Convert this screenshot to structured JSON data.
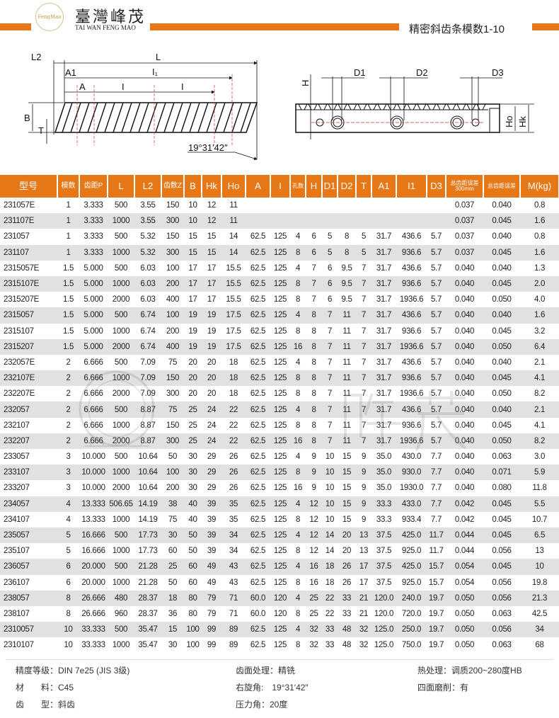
{
  "header": {
    "brand_cn": "臺灣峰茂",
    "brand_en": "TAI WAN FENG MAO",
    "logo_text": "FengMao",
    "page_title": "精密斜齿条模数1-10",
    "accent": "#e67817"
  },
  "drawing_left": {
    "labels": {
      "L2": "L2",
      "L": "L",
      "A1": "A1",
      "I1": "I₁",
      "A": "A",
      "I_a": "I",
      "I_b": "I",
      "B": "B",
      "T": "T",
      "angle": "19°31′42″"
    }
  },
  "drawing_right": {
    "labels": {
      "H": "H",
      "D1": "D1",
      "D2": "D2",
      "D3": "D3",
      "Ho": "Ho",
      "Hk": "Hk"
    }
  },
  "table": {
    "columns": [
      "型号",
      "模数",
      "齿距P",
      "L",
      "L2",
      "齿数Z",
      "B",
      "Hk",
      "Ho",
      "A",
      "I",
      "孔数",
      "H",
      "D1",
      "D2",
      "T",
      "A1",
      "I1",
      "D3",
      "总齿距误差300mm",
      "总齿距误差",
      "M(kg)"
    ],
    "rows": [
      [
        "231057E",
        "1",
        "3.333",
        "500",
        "3.55",
        "150",
        "10",
        "12",
        "11",
        "",
        "",
        "",
        "",
        "",
        "",
        "",
        "",
        "",
        "",
        "0.037",
        "0.040",
        "0.8"
      ],
      [
        "231107E",
        "1",
        "3.333",
        "1000",
        "3.55",
        "300",
        "10",
        "12",
        "11",
        "",
        "",
        "",
        "",
        "",
        "",
        "",
        "",
        "",
        "",
        "0.037",
        "0.045",
        "1.6"
      ],
      [
        "231057",
        "1",
        "3.333",
        "500",
        "5.32",
        "150",
        "15",
        "15",
        "14",
        "62.5",
        "125",
        "4",
        "6",
        "5",
        "8",
        "5",
        "31.7",
        "436.6",
        "5.7",
        "0.037",
        "0.040",
        "0.8"
      ],
      [
        "231107",
        "1",
        "3.333",
        "1000",
        "5.32",
        "300",
        "15",
        "15",
        "14",
        "62.5",
        "125",
        "8",
        "6",
        "5",
        "8",
        "5",
        "31.7",
        "936.6",
        "5.7",
        "0.037",
        "0.045",
        "1.6"
      ],
      [
        "2315057E",
        "1.5",
        "5.000",
        "500",
        "6.03",
        "100",
        "17",
        "17",
        "15.5",
        "62.5",
        "125",
        "4",
        "7",
        "6",
        "9.5",
        "7",
        "31.7",
        "436.6",
        "5.7",
        "0.040",
        "0.040",
        "1.3"
      ],
      [
        "2315107E",
        "1.5",
        "5.000",
        "1000",
        "6.03",
        "200",
        "17",
        "17",
        "15.5",
        "62.5",
        "125",
        "8",
        "7",
        "6",
        "9.5",
        "7",
        "31.7",
        "936.6",
        "5.7",
        "0.040",
        "0.045",
        "2.0"
      ],
      [
        "2315207E",
        "1.5",
        "5.000",
        "2000",
        "6.03",
        "400",
        "17",
        "17",
        "15.5",
        "62.5",
        "125",
        "8",
        "7",
        "6",
        "9.5",
        "7",
        "31.7",
        "1936.6",
        "5.7",
        "0.040",
        "0.050",
        "4.0"
      ],
      [
        "2315057",
        "1.5",
        "5.000",
        "500",
        "6.74",
        "100",
        "19",
        "19",
        "17.5",
        "62.5",
        "125",
        "4",
        "8",
        "7",
        "11",
        "7",
        "31.7",
        "436.6",
        "5.7",
        "0.040",
        "0.040",
        "1.6"
      ],
      [
        "2315107",
        "1.5",
        "5.000",
        "1000",
        "6.74",
        "200",
        "19",
        "19",
        "17.5",
        "62.5",
        "125",
        "8",
        "8",
        "7",
        "11",
        "7",
        "31.7",
        "936.6",
        "5.7",
        "0.040",
        "0.045",
        "3.2"
      ],
      [
        "2315207",
        "1.5",
        "5.000",
        "2000",
        "6.74",
        "400",
        "19",
        "19",
        "17.5",
        "62.5",
        "125",
        "16",
        "8",
        "7",
        "11",
        "7",
        "31.7",
        "1936.6",
        "5.7",
        "0.040",
        "0.050",
        "6.4"
      ],
      [
        "232057E",
        "2",
        "6.666",
        "500",
        "7.09",
        "75",
        "20",
        "20",
        "18",
        "62.5",
        "125",
        "4",
        "8",
        "7",
        "11",
        "7",
        "31.7",
        "436.6",
        "5.7",
        "0.040",
        "0.040",
        "2.1"
      ],
      [
        "232107E",
        "2",
        "6.666",
        "1000",
        "7.09",
        "150",
        "20",
        "20",
        "18",
        "62.5",
        "125",
        "8",
        "8",
        "7",
        "11",
        "7",
        "31.7",
        "936.6",
        "5.7",
        "0.040",
        "0.045",
        "4.1"
      ],
      [
        "232207E",
        "2",
        "6.666",
        "2000",
        "7.09",
        "300",
        "20",
        "20",
        "18",
        "62.5",
        "125",
        "8",
        "8",
        "7",
        "11",
        "7",
        "31.7",
        "1936.6",
        "5.7",
        "0.040",
        "0.050",
        "8.2"
      ],
      [
        "232057",
        "2",
        "6.666",
        "500",
        "8.87",
        "75",
        "25",
        "24",
        "22",
        "62.5",
        "125",
        "4",
        "8",
        "7",
        "11",
        "7",
        "31.7",
        "436.6",
        "5.7",
        "0.040",
        "0.040",
        "2.1"
      ],
      [
        "232107",
        "2",
        "6.666",
        "1000",
        "8.87",
        "150",
        "25",
        "24",
        "22",
        "62.5",
        "125",
        "8",
        "8",
        "7",
        "11",
        "7",
        "31.7",
        "936.6",
        "5.7",
        "0.040",
        "0.045",
        "4.1"
      ],
      [
        "232207",
        "2",
        "6.666",
        "2000",
        "8.87",
        "300",
        "25",
        "24",
        "22",
        "62.5",
        "125",
        "16",
        "8",
        "7",
        "11",
        "7",
        "31.7",
        "1936.6",
        "5.7",
        "0.040",
        "0.050",
        "8.2"
      ],
      [
        "233057",
        "3",
        "10.000",
        "500",
        "10.64",
        "50",
        "30",
        "29",
        "26",
        "62.5",
        "125",
        "4",
        "9",
        "10",
        "15",
        "9",
        "35.0",
        "430.0",
        "7.7",
        "0.040",
        "0.063",
        "3.0"
      ],
      [
        "233107",
        "3",
        "10.000",
        "1000",
        "10.64",
        "100",
        "30",
        "29",
        "26",
        "62.5",
        "125",
        "8",
        "9",
        "10",
        "15",
        "9",
        "35.0",
        "930.0",
        "7.7",
        "0.040",
        "0.071",
        "5.9"
      ],
      [
        "233207",
        "3",
        "10.000",
        "2000",
        "10.64",
        "200",
        "30",
        "29",
        "26",
        "62.5",
        "125",
        "16",
        "9",
        "10",
        "15",
        "9",
        "35.0",
        "1930.0",
        "7.7",
        "0.040",
        "0.080",
        "11.8"
      ],
      [
        "234057",
        "4",
        "13.333",
        "506.65",
        "14.19",
        "38",
        "40",
        "39",
        "35",
        "62.5",
        "125",
        "4",
        "12",
        "10",
        "15",
        "9",
        "33.3",
        "433.0",
        "7.7",
        "0.042",
        "0.045",
        "5.5"
      ],
      [
        "234107",
        "4",
        "13.333",
        "1000",
        "14.19",
        "75",
        "40",
        "39",
        "35",
        "62.5",
        "125",
        "8",
        "12",
        "10",
        "15",
        "9",
        "33.3",
        "933.4",
        "7.7",
        "0.042",
        "0.045",
        "10.7"
      ],
      [
        "235057",
        "5",
        "16.666",
        "500",
        "17.73",
        "30",
        "50",
        "39",
        "34",
        "62.5",
        "125",
        "4",
        "12",
        "14",
        "20",
        "13",
        "37.5",
        "425.0",
        "11.7",
        "0.044",
        "0.045",
        "6.5"
      ],
      [
        "235107",
        "5",
        "16.666",
        "1000",
        "17.73",
        "60",
        "50",
        "39",
        "34",
        "62.5",
        "125",
        "8",
        "12",
        "14",
        "20",
        "13",
        "37.5",
        "925.0",
        "11.7",
        "0.044",
        "0.056",
        "13"
      ],
      [
        "236057",
        "6",
        "20.000",
        "500",
        "21.28",
        "25",
        "60",
        "49",
        "43",
        "62.5",
        "125",
        "4",
        "16",
        "18",
        "26",
        "17",
        "37.5",
        "425.0",
        "15.7",
        "0.054",
        "0.045",
        "10"
      ],
      [
        "236107",
        "6",
        "20.000",
        "1000",
        "21.28",
        "50",
        "60",
        "49",
        "43",
        "62.5",
        "125",
        "8",
        "16",
        "18",
        "26",
        "17",
        "37.5",
        "925.0",
        "15.7",
        "0.054",
        "0.056",
        "19.8"
      ],
      [
        "238057",
        "8",
        "26.666",
        "480",
        "28.37",
        "18",
        "80",
        "79",
        "71",
        "60.0",
        "120",
        "4",
        "25",
        "22",
        "33",
        "21",
        "120.0",
        "240.0",
        "19.7",
        "0.050",
        "0.056",
        "21.3"
      ],
      [
        "238107",
        "8",
        "26.666",
        "960",
        "28.37",
        "36",
        "80",
        "79",
        "71",
        "60.0",
        "120",
        "8",
        "25",
        "22",
        "33",
        "21",
        "120.0",
        "720.0",
        "19.7",
        "0.050",
        "0.063",
        "42.5"
      ],
      [
        "2310057",
        "10",
        "33.333",
        "500",
        "35.47",
        "15",
        "100",
        "99",
        "89",
        "62.5",
        "125",
        "4",
        "32",
        "33",
        "48",
        "32",
        "125.0",
        "250.0",
        "19.7",
        "0.050",
        "0.056",
        "34"
      ],
      [
        "2310107",
        "10",
        "33.333",
        "1000",
        "35.47",
        "30",
        "100",
        "99",
        "89",
        "62.5",
        "125",
        "8",
        "32",
        "33",
        "48",
        "32",
        "125.0",
        "750.0",
        "19.7",
        "0.050",
        "0.063",
        "68"
      ]
    ]
  },
  "watermark": {
    "cn": "峰茂",
    "en": "FENG MAO",
    "logo": "FengMao"
  },
  "notes": {
    "precision": "精度等级：DIN 7e25 (JIS 3级)",
    "material": "材　　料：C45",
    "tooth_type": "齿　　型：斜齿",
    "surface": "齿面处理：精铣",
    "helix": "右旋角:　19°31′42″",
    "pressure": "压力角：20度",
    "heat": "热处理：调质200~280度HB",
    "grinding": "四面磨削：有"
  }
}
